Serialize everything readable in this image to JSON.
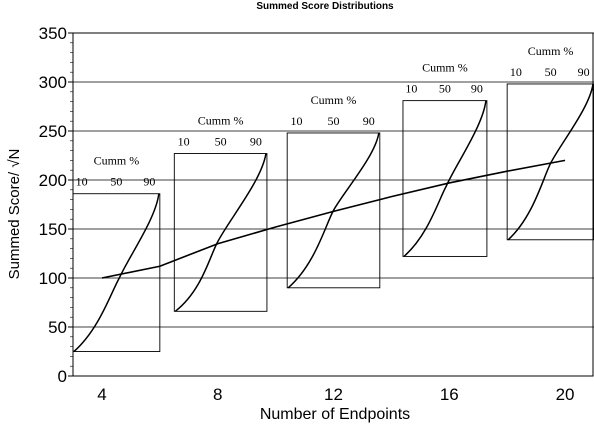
{
  "chart_data": {
    "type": "line",
    "title": "Summed Score Distributions",
    "xlabel": "Number of Endpoints",
    "ylabel": "Summed Score/ √N",
    "xlim": [
      3,
      21
    ],
    "ylim": [
      0,
      350
    ],
    "x_ticks": [
      4,
      8,
      12,
      16,
      20
    ],
    "y_ticks": [
      0,
      50,
      100,
      150,
      200,
      250,
      300,
      350
    ],
    "grid": "horizontal",
    "trend_line": [
      [
        4,
        100
      ],
      [
        6,
        112
      ],
      [
        8,
        135
      ],
      [
        10,
        152
      ],
      [
        12,
        168
      ],
      [
        14,
        183
      ],
      [
        16,
        197
      ],
      [
        18,
        209
      ],
      [
        20,
        220
      ]
    ],
    "distributions": [
      {
        "endpoints": 4,
        "x_range": [
          3.0,
          6.0
        ],
        "y_range": [
          25,
          186
        ],
        "center": [
          4.6,
          100
        ],
        "header": "Cumm %",
        "percentiles": [
          "10",
          "50",
          "90"
        ]
      },
      {
        "endpoints": 8,
        "x_range": [
          6.5,
          9.7
        ],
        "y_range": [
          66,
          227
        ],
        "center": [
          8.0,
          137
        ],
        "header": "Cumm %",
        "percentiles": [
          "10",
          "50",
          "90"
        ]
      },
      {
        "endpoints": 12,
        "x_range": [
          10.4,
          13.6
        ],
        "y_range": [
          90,
          248
        ],
        "center": [
          12.0,
          169
        ],
        "header": "Cumm %",
        "percentiles": [
          "10",
          "50",
          "90"
        ]
      },
      {
        "endpoints": 16,
        "x_range": [
          14.4,
          17.3
        ],
        "y_range": [
          122,
          281
        ],
        "center": [
          15.9,
          194
        ],
        "header": "Cumm %",
        "percentiles": [
          "10",
          "50",
          "90"
        ]
      },
      {
        "endpoints": 20,
        "x_range": [
          18.0,
          21.0
        ],
        "y_range": [
          139,
          298
        ],
        "center": [
          19.5,
          217
        ],
        "header": "Cumm %",
        "percentiles": [
          "10",
          "50",
          "90"
        ]
      }
    ]
  }
}
